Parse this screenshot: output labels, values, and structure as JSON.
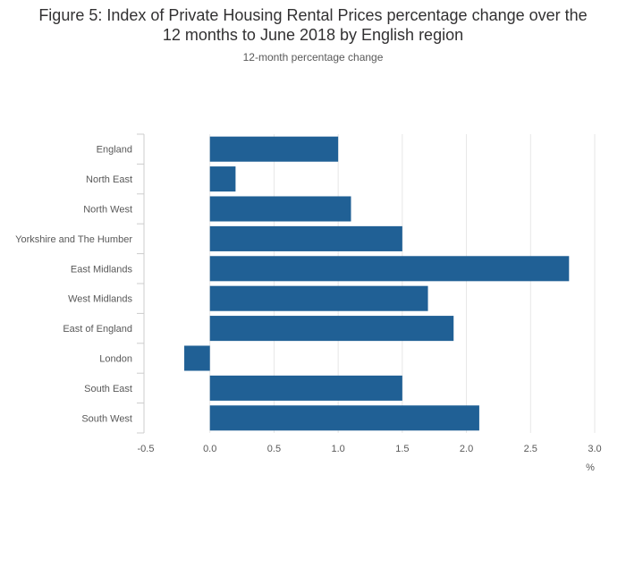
{
  "title": "Figure 5: Index of Private Housing Rental Prices percentage change over the\n12 months to June 2018 by English region",
  "subtitle": "12-month percentage change",
  "colors": {
    "bar": "#206095",
    "grid": "#e6e6e6",
    "axis": "#cccccc"
  },
  "chart_data": {
    "type": "bar",
    "orientation": "horizontal",
    "categories": [
      "England",
      "North East",
      "North West",
      "Yorkshire and The Humber",
      "East Midlands",
      "West Midlands",
      "East of England",
      "London",
      "South East",
      "South West"
    ],
    "values": [
      1.0,
      0.2,
      1.1,
      1.5,
      2.8,
      1.7,
      1.9,
      -0.2,
      1.5,
      2.1
    ],
    "xlabel": "%",
    "ylabel": "",
    "xlim": [
      -0.5,
      3.0
    ],
    "xticks": [
      -0.5,
      0.0,
      0.5,
      1.0,
      1.5,
      2.0,
      2.5,
      3.0
    ],
    "xtick_labels": [
      "-0.5",
      "0.0",
      "0.5",
      "1.0",
      "1.5",
      "2.0",
      "2.5",
      "3.0"
    ],
    "grid": true,
    "legend": "none"
  }
}
